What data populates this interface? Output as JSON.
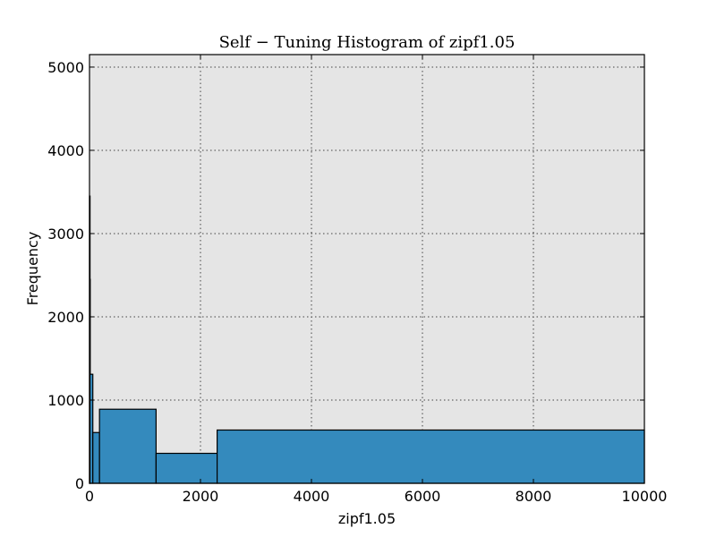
{
  "chart_data": {
    "type": "bar",
    "title": "Self − Tuning Histogram of zipf1.05",
    "xlabel": "zipf1.05",
    "ylabel": "Frequency",
    "xlim": [
      0,
      10000
    ],
    "ylim": [
      0,
      5150
    ],
    "grid": true,
    "xticks": [
      0,
      2000,
      4000,
      6000,
      8000,
      10000
    ],
    "yticks": [
      0,
      1000,
      2000,
      3000,
      4000,
      5000
    ],
    "bins": [
      {
        "x0": 0,
        "x1": 3,
        "value": 3450
      },
      {
        "x0": 3,
        "x1": 8,
        "value": 2450
      },
      {
        "x0": 8,
        "x1": 60,
        "value": 1310
      },
      {
        "x0": 60,
        "x1": 180,
        "value": 610
      },
      {
        "x0": 180,
        "x1": 1200,
        "value": 890
      },
      {
        "x0": 1200,
        "x1": 2300,
        "value": 360
      },
      {
        "x0": 2300,
        "x1": 10000,
        "value": 640
      }
    ]
  },
  "colors": {
    "bar_fill": "#348abd",
    "plot_background": "#e5e5e5"
  }
}
